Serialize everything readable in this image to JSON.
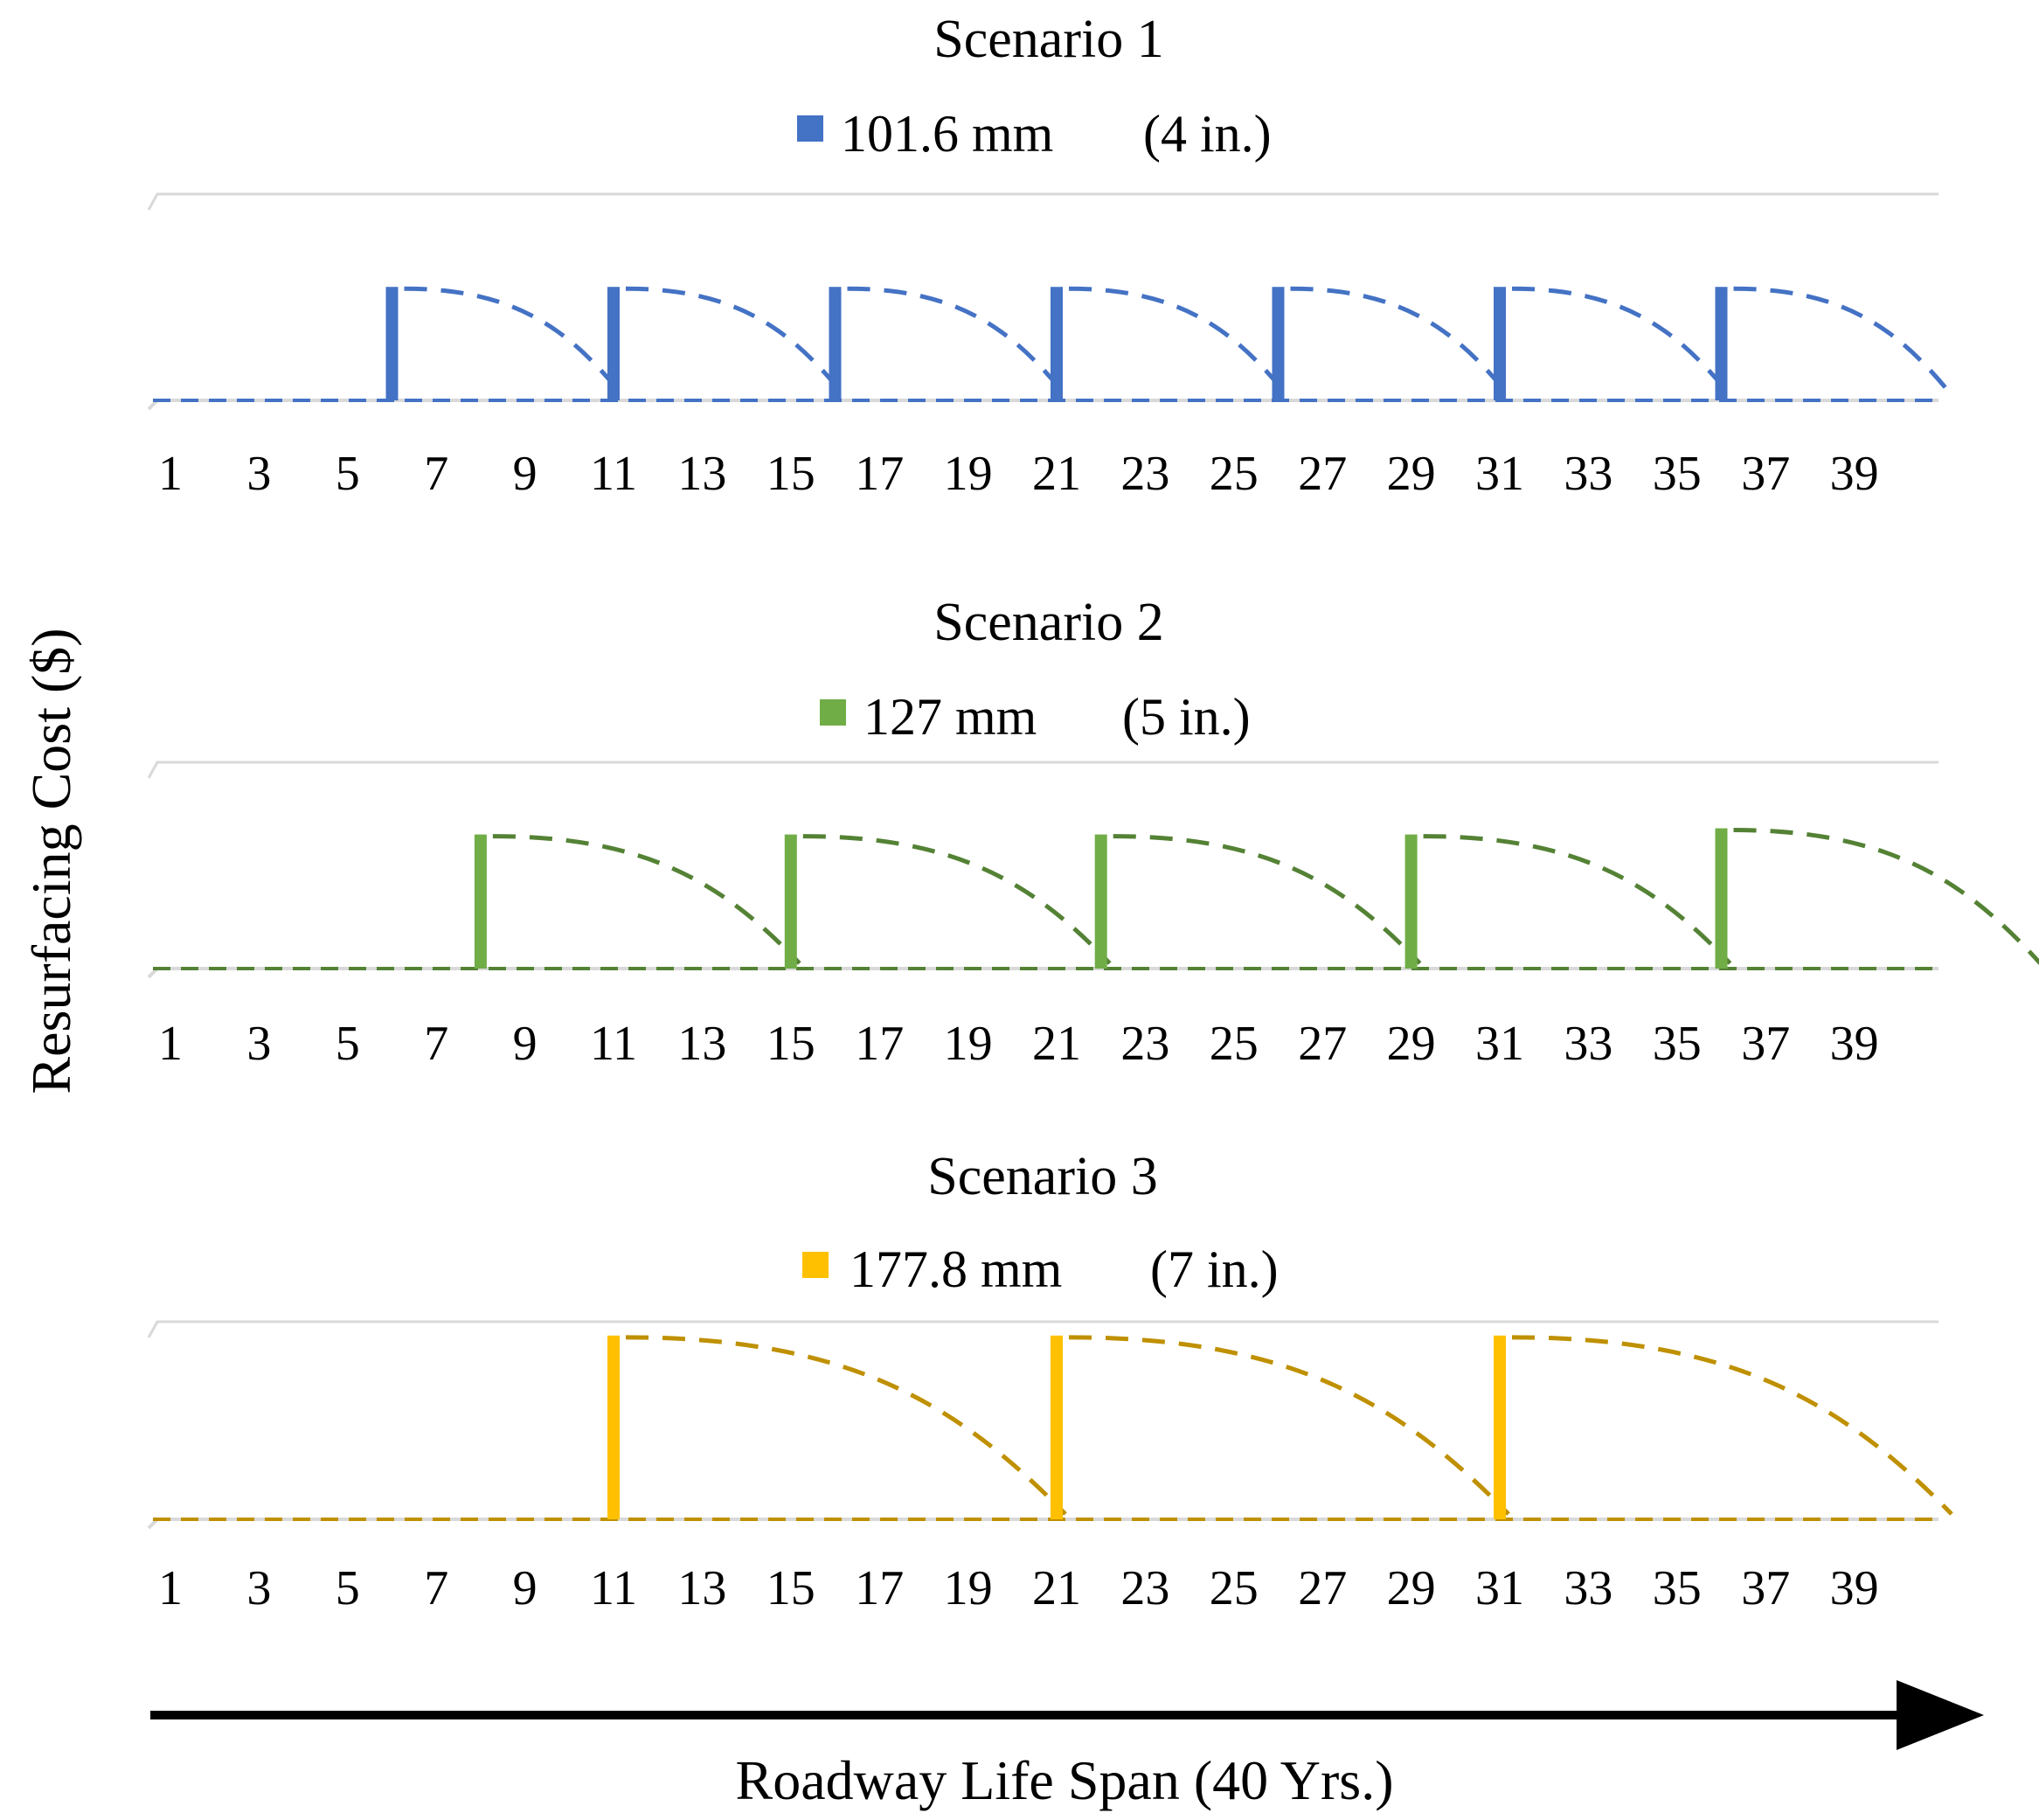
{
  "figure": {
    "ylabel": "Resurfacing Cost ($)",
    "xlabel": "Roadway Life Span (40 Yrs.)"
  },
  "chart_data": [
    {
      "type": "bar",
      "title": "Scenario 1",
      "legend": "101.6 mm",
      "legend_unit": "(4 in.)",
      "color": "#4472C4",
      "line_color": "#4472C4",
      "x_ticks": [
        "1",
        "3",
        "5",
        "7",
        "9",
        "11",
        "13",
        "15",
        "17",
        "19",
        "21",
        "23",
        "25",
        "27",
        "29",
        "31",
        "33",
        "35",
        "37",
        "39"
      ],
      "xlim": [
        1,
        41
      ],
      "ylim": [
        0,
        1
      ],
      "bars": [
        {
          "x": 6,
          "value": 0.55
        },
        {
          "x": 11,
          "value": 0.55
        },
        {
          "x": 16,
          "value": 0.55
        },
        {
          "x": 21,
          "value": 0.55
        },
        {
          "x": 26,
          "value": 0.55
        },
        {
          "x": 31,
          "value": 0.55
        },
        {
          "x": 36,
          "value": 0.55
        }
      ],
      "cycles": [
        {
          "start": 6,
          "end": 11
        },
        {
          "start": 11,
          "end": 16
        },
        {
          "start": 16,
          "end": 21
        },
        {
          "start": 21,
          "end": 26
        },
        {
          "start": 26,
          "end": 31
        },
        {
          "start": 31,
          "end": 36
        },
        {
          "start": 36,
          "end": 41
        }
      ]
    },
    {
      "type": "bar",
      "title": "Scenario 2",
      "legend": "127 mm",
      "legend_unit": "(5 in.)",
      "color": "#70AD47",
      "line_color": "#548235",
      "x_ticks": [
        "1",
        "3",
        "5",
        "7",
        "9",
        "11",
        "13",
        "15",
        "17",
        "19",
        "21",
        "23",
        "25",
        "27",
        "29",
        "31",
        "33",
        "35",
        "37",
        "39"
      ],
      "xlim": [
        1,
        41
      ],
      "ylim": [
        0,
        1
      ],
      "bars": [
        {
          "x": 8,
          "value": 0.65
        },
        {
          "x": 15,
          "value": 0.65
        },
        {
          "x": 22,
          "value": 0.65
        },
        {
          "x": 29,
          "value": 0.65
        },
        {
          "x": 36,
          "value": 0.68
        }
      ],
      "cycles": [
        {
          "start": 8,
          "end": 15
        },
        {
          "start": 15,
          "end": 22
        },
        {
          "start": 22,
          "end": 29
        },
        {
          "start": 29,
          "end": 36
        },
        {
          "start": 36,
          "end": 43
        }
      ]
    },
    {
      "type": "bar",
      "title": "Scenario 3",
      "legend": "177.8 mm",
      "legend_unit": "(7 in.)",
      "color": "#FFC000",
      "line_color": "#BF9000",
      "x_ticks": [
        "1",
        "3",
        "5",
        "7",
        "9",
        "11",
        "13",
        "15",
        "17",
        "19",
        "21",
        "23",
        "25",
        "27",
        "29",
        "31",
        "33",
        "35",
        "37",
        "39"
      ],
      "xlim": [
        1,
        41
      ],
      "ylim": [
        0,
        1
      ],
      "bars": [
        {
          "x": 11,
          "value": 0.93
        },
        {
          "x": 21,
          "value": 0.93
        },
        {
          "x": 31,
          "value": 0.93
        }
      ],
      "cycles": [
        {
          "start": 11,
          "end": 21
        },
        {
          "start": 21,
          "end": 31
        },
        {
          "start": 31,
          "end": 41
        }
      ]
    }
  ]
}
